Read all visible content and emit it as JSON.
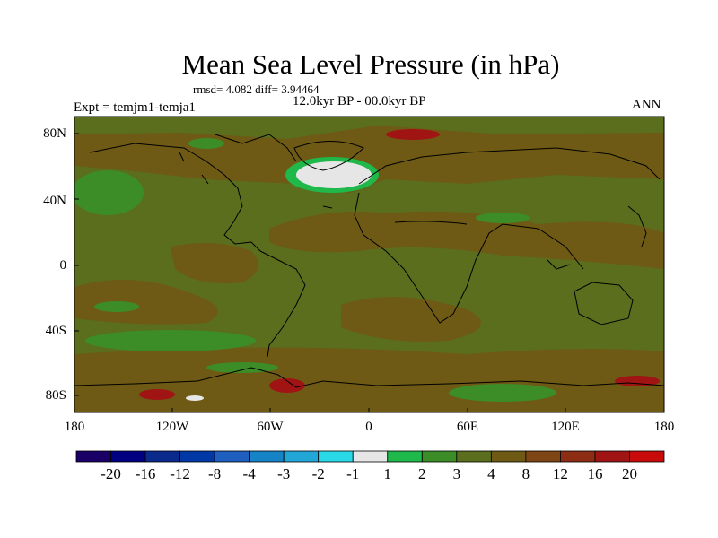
{
  "title": "Mean Sea Level Pressure (in hPa)",
  "stats": "rmsd= 4.082 diff= 3.94464",
  "period": "12.0kyr BP - 00.0kyr BP",
  "experiment": "Expt = temjm1-temja1",
  "season": "ANN",
  "lat_labels": [
    "80N",
    "40N",
    "0",
    "40S",
    "80S"
  ],
  "lon_labels": [
    "180",
    "120W",
    "60W",
    "0",
    "60E",
    "120E",
    "180"
  ],
  "colorbar": {
    "labels": [
      "-20",
      "-16",
      "-12",
      "-8",
      "-4",
      "-3",
      "-2",
      "-1",
      "1",
      "2",
      "3",
      "4",
      "8",
      "12",
      "16",
      "20"
    ],
    "colors": [
      "#1a0066",
      "#000080",
      "#0a2a8c",
      "#0039a6",
      "#1e5fbf",
      "#1583c6",
      "#22a6d8",
      "#2ad9e6",
      "#e6e6e6",
      "#1fb84a",
      "#3c8c28",
      "#5a6e1e",
      "#6e5a14",
      "#7d4614",
      "#8c2d14",
      "#a01414",
      "#c80a0a"
    ]
  },
  "colors": {
    "background_field": "#5a6e1e",
    "positive_field": "#6e5a14",
    "low_anomaly": "#3c8c28",
    "max_anomaly": "#e6e6e6",
    "high_anomaly": "#a01414"
  }
}
